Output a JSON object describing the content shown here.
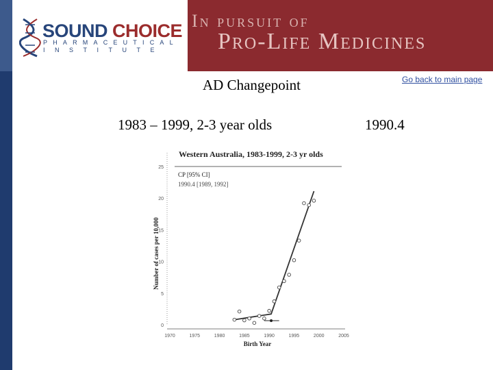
{
  "header": {
    "logo_word_sound": "SOUND",
    "logo_word_choice": "CHOICE",
    "logo_line2": "PHARMACEUTICAL",
    "logo_line3": "INSTITUTE",
    "tagline_1": "In pursuit of",
    "tagline_2": "Pro-Life Medicines",
    "brand_blue": "#27457a",
    "brand_red": "#8b2a2f"
  },
  "slide": {
    "title": "AD Changepoint",
    "back_link": "Go back to main page",
    "subtitle": "1983 – 1999, 2-3 year olds",
    "changepoint_value": "1990.4"
  },
  "chart_data": {
    "type": "scatter",
    "title": "Western Australia, 1983-1999, 2-3 yr olds",
    "xlabel": "Birth Year",
    "ylabel": "Number of cases per 10,000",
    "xlim": [
      1970,
      2005
    ],
    "ylim": [
      0,
      25
    ],
    "xticks": [
      1970,
      1975,
      1980,
      1985,
      1990,
      1995,
      2000,
      2005
    ],
    "yticks": [
      0,
      5,
      10,
      15,
      20,
      25
    ],
    "legend": {
      "header": "CP [95% CI]",
      "entry": "1990.4 [1989, 1992]",
      "placement": "top-left"
    },
    "points": [
      {
        "x": 1983,
        "y": 0.8
      },
      {
        "x": 1984,
        "y": 2.1
      },
      {
        "x": 1985,
        "y": 0.7
      },
      {
        "x": 1986,
        "y": 1.0
      },
      {
        "x": 1987,
        "y": 0.3
      },
      {
        "x": 1988,
        "y": 1.4
      },
      {
        "x": 1989,
        "y": 1.0
      },
      {
        "x": 1990,
        "y": 2.2
      },
      {
        "x": 1991,
        "y": 3.7
      },
      {
        "x": 1992,
        "y": 5.9
      },
      {
        "x": 1993,
        "y": 6.9
      },
      {
        "x": 1994,
        "y": 7.9
      },
      {
        "x": 1995,
        "y": 10.2
      },
      {
        "x": 1996,
        "y": 13.3
      },
      {
        "x": 1997,
        "y": 19.2
      },
      {
        "x": 1998,
        "y": 18.9
      },
      {
        "x": 1999,
        "y": 19.6
      }
    ],
    "fit_line": [
      {
        "x": 1983,
        "y": 0.8
      },
      {
        "x": 1990.4,
        "y": 1.7
      },
      {
        "x": 1999,
        "y": 21.1
      }
    ],
    "changepoint": {
      "x": 1990.4,
      "ci": [
        1989,
        1992
      ]
    },
    "colors": {
      "line": "#333333",
      "points": "#444444",
      "text": "#222222"
    }
  }
}
